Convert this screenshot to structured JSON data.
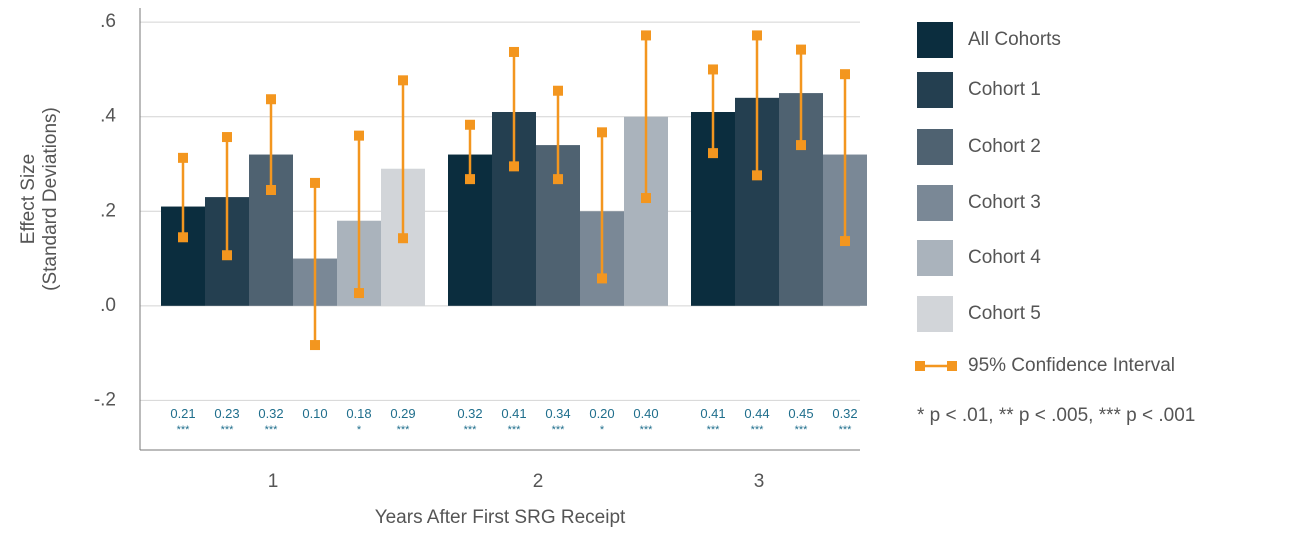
{
  "chart_data": {
    "type": "bar",
    "y_label": [
      "Effect Size",
      "(Standard Deviations)"
    ],
    "x_label": "Years After First SRG Receipt",
    "categories": [
      "1",
      "2",
      "3"
    ],
    "ylim": [
      -0.305,
      0.63
    ],
    "yticks": [
      {
        "value": 0.6,
        "label": ".6"
      },
      {
        "value": 0.4,
        "label": ".4"
      },
      {
        "value": 0.2,
        "label": ".2"
      },
      {
        "value": 0,
        "label": ".0"
      },
      {
        "value": -0.2,
        "label": "-.2"
      }
    ],
    "grid": true,
    "ci_name": "95% Confidence Interval",
    "ci_color": "#f3961f",
    "note": "* p < .01, ** p < .005, *** p < .001",
    "series": [
      {
        "name": "All Cohorts",
        "color": "#0b2d3e",
        "values": [
          0.21,
          0.32,
          0.41
        ],
        "value_labels": [
          "0.21",
          "0.32",
          "0.41"
        ],
        "stars": [
          "***",
          "***",
          "***"
        ],
        "ci_low": [
          0.145,
          0.268,
          0.323
        ],
        "ci_high": [
          0.313,
          0.383,
          0.5
        ]
      },
      {
        "name": "Cohort 1",
        "color": "#243f50",
        "values": [
          0.23,
          0.41,
          0.44
        ],
        "value_labels": [
          "0.23",
          "0.41",
          "0.44"
        ],
        "stars": [
          "***",
          "***",
          "***"
        ],
        "ci_low": [
          0.107,
          0.295,
          0.276
        ],
        "ci_high": [
          0.357,
          0.537,
          0.572
        ]
      },
      {
        "name": "Cohort 2",
        "color": "#4f6271",
        "values": [
          0.32,
          0.34,
          0.45
        ],
        "value_labels": [
          "0.32",
          "0.34",
          "0.45"
        ],
        "stars": [
          "***",
          "***",
          "***"
        ],
        "ci_low": [
          0.245,
          0.268,
          0.34
        ],
        "ci_high": [
          0.437,
          0.455,
          0.542
        ]
      },
      {
        "name": "Cohort 3",
        "color": "#7a8896",
        "values": [
          0.1,
          0.2,
          0.32
        ],
        "value_labels": [
          "0.10",
          "0.20",
          "0.32"
        ],
        "stars": [
          null,
          "*",
          "***"
        ],
        "ci_low": [
          -0.083,
          0.058,
          0.137
        ],
        "ci_high": [
          0.26,
          0.367,
          0.49
        ]
      },
      {
        "name": "Cohort 4",
        "color": "#aab3bc",
        "values": [
          0.18,
          0.4,
          null
        ],
        "value_labels": [
          "0.18",
          "0.40",
          null
        ],
        "stars": [
          "*",
          "***",
          null
        ],
        "ci_low": [
          0.027,
          0.228,
          null
        ],
        "ci_high": [
          0.36,
          0.572,
          null
        ]
      },
      {
        "name": "Cohort 5",
        "color": "#d2d5d9",
        "values": [
          0.29,
          null,
          null
        ],
        "value_labels": [
          "0.29",
          null,
          null
        ],
        "stars": [
          "***",
          null,
          null
        ],
        "ci_low": [
          0.143,
          null,
          null
        ],
        "ci_high": [
          0.477,
          null,
          null
        ]
      }
    ]
  }
}
